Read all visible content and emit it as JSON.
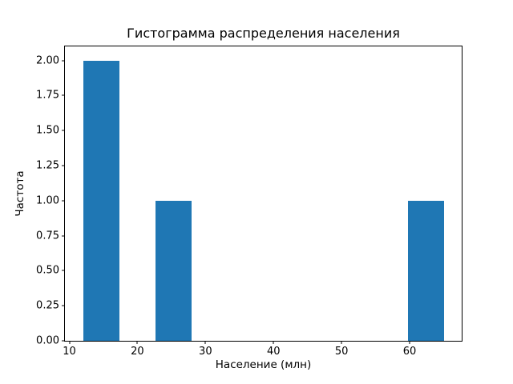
{
  "chart_data": {
    "type": "bar",
    "subtype": "histogram",
    "title": "Гистограмма распределения населения",
    "xlabel": "Население (млн)",
    "ylabel": "Частота",
    "bar_color": "#1f77b4",
    "background_color": "#ffffff",
    "grid": false,
    "legend": false,
    "xlim": [
      9.35,
      67.65
    ],
    "ylim": [
      0,
      2.1
    ],
    "bins": [
      {
        "start": 12.0,
        "end": 17.3,
        "count": 2
      },
      {
        "start": 22.6,
        "end": 27.9,
        "count": 1
      },
      {
        "start": 59.7,
        "end": 65.0,
        "count": 1
      }
    ],
    "x_ticks": [
      {
        "v": 10,
        "label": "10"
      },
      {
        "v": 20,
        "label": "20"
      },
      {
        "v": 30,
        "label": "30"
      },
      {
        "v": 40,
        "label": "40"
      },
      {
        "v": 50,
        "label": "50"
      },
      {
        "v": 60,
        "label": "60"
      }
    ],
    "y_ticks": [
      {
        "v": 0.0,
        "label": "0.00"
      },
      {
        "v": 0.25,
        "label": "0.25"
      },
      {
        "v": 0.5,
        "label": "0.50"
      },
      {
        "v": 0.75,
        "label": "0.75"
      },
      {
        "v": 1.0,
        "label": "1.00"
      },
      {
        "v": 1.25,
        "label": "1.25"
      },
      {
        "v": 1.5,
        "label": "1.50"
      },
      {
        "v": 1.75,
        "label": "1.75"
      },
      {
        "v": 2.0,
        "label": "2.00"
      }
    ]
  }
}
